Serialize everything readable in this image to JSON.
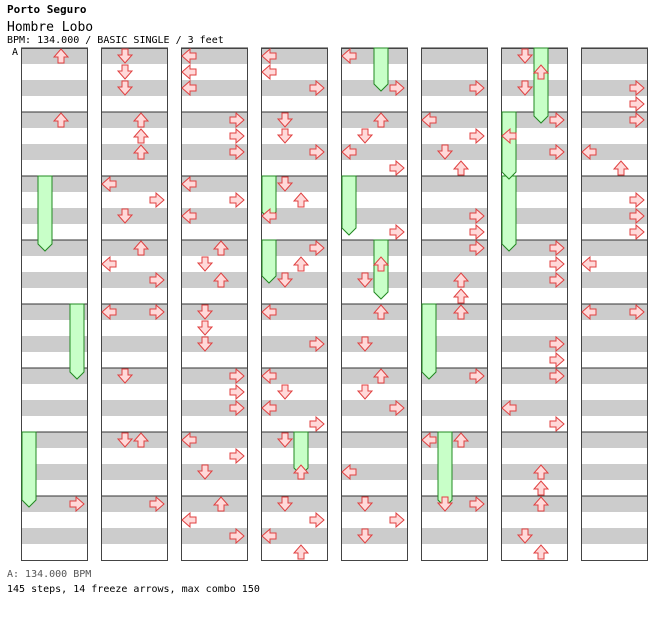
{
  "header": {
    "artist": "Porto Seguro",
    "title": "Hombre Lobo",
    "meta": "BPM: 134.000 / BASIC SINGLE / 3 feet"
  },
  "bpm_marker": "A",
  "footer": {
    "bpm_line": "A: 134.000 BPM",
    "stats": "145 steps, 14 freeze arrows, max combo 150"
  },
  "colors": {
    "stripe": "#cccccc",
    "arrow_fill": "#ffd9d9",
    "arrow_stroke": "#e04040",
    "freeze_fill": "#c8ffc8",
    "freeze_stroke": "#228822"
  },
  "chart_data": {
    "type": "step-chart",
    "columns": 8,
    "measures_per_column": 8,
    "lanes": [
      "left",
      "down",
      "up",
      "right"
    ],
    "freezes": [
      {
        "col": 0,
        "lane": "down",
        "start": 8,
        "end": 12.5
      },
      {
        "col": 0,
        "lane": "right",
        "start": 16,
        "end": 20.5
      },
      {
        "col": 0,
        "lane": "left",
        "start": 24,
        "end": 28.5
      },
      {
        "col": 3,
        "lane": "left",
        "start": 8,
        "end": 10.5
      },
      {
        "col": 3,
        "lane": "left",
        "start": 12,
        "end": 14.5
      },
      {
        "col": 3,
        "lane": "up",
        "start": 24,
        "end": 26.5
      },
      {
        "col": 4,
        "lane": "left",
        "start": 8,
        "end": 11.5
      },
      {
        "col": 4,
        "lane": "up",
        "start": 0,
        "end": 2.5
      },
      {
        "col": 4,
        "lane": "up",
        "start": 12,
        "end": 15.5
      },
      {
        "col": 5,
        "lane": "left",
        "start": 16,
        "end": 20.5
      },
      {
        "col": 5,
        "lane": "down",
        "start": 24,
        "end": 28.5
      },
      {
        "col": 6,
        "lane": "up",
        "start": 0,
        "end": 4.5
      },
      {
        "col": 6,
        "lane": "left",
        "start": 8,
        "end": 12.5
      },
      {
        "col": 6,
        "lane": "left",
        "start": 4,
        "end": 8
      }
    ],
    "arrows": [
      {
        "col": 0,
        "lane": "up",
        "row": 0.5
      },
      {
        "col": 0,
        "lane": "up",
        "row": 4.5
      },
      {
        "col": 0,
        "lane": "right",
        "row": 28.5
      },
      {
        "col": 1,
        "lane": "down",
        "row": 0.5
      },
      {
        "col": 1,
        "lane": "down",
        "row": 1.5
      },
      {
        "col": 1,
        "lane": "down",
        "row": 2.5
      },
      {
        "col": 1,
        "lane": "up",
        "row": 4.5
      },
      {
        "col": 1,
        "lane": "up",
        "row": 5.5
      },
      {
        "col": 1,
        "lane": "up",
        "row": 6.5
      },
      {
        "col": 1,
        "lane": "left",
        "row": 8.5
      },
      {
        "col": 1,
        "lane": "right",
        "row": 9.5
      },
      {
        "col": 1,
        "lane": "down",
        "row": 10.5
      },
      {
        "col": 1,
        "lane": "up",
        "row": 12.5
      },
      {
        "col": 1,
        "lane": "left",
        "row": 13.5
      },
      {
        "col": 1,
        "lane": "right",
        "row": 14.5
      },
      {
        "col": 1,
        "lane": "left",
        "row": 16.5
      },
      {
        "col": 1,
        "lane": "right",
        "row": 16.5
      },
      {
        "col": 1,
        "lane": "down",
        "row": 20.5
      },
      {
        "col": 1,
        "lane": "down",
        "row": 24.5
      },
      {
        "col": 1,
        "lane": "up",
        "row": 24.5
      },
      {
        "col": 1,
        "lane": "right",
        "row": 28.5
      },
      {
        "col": 2,
        "lane": "left",
        "row": 0.5
      },
      {
        "col": 2,
        "lane": "left",
        "row": 1.5
      },
      {
        "col": 2,
        "lane": "left",
        "row": 2.5
      },
      {
        "col": 2,
        "lane": "right",
        "row": 4.5
      },
      {
        "col": 2,
        "lane": "right",
        "row": 5.5
      },
      {
        "col": 2,
        "lane": "right",
        "row": 6.5
      },
      {
        "col": 2,
        "lane": "left",
        "row": 8.5
      },
      {
        "col": 2,
        "lane": "right",
        "row": 9.5
      },
      {
        "col": 2,
        "lane": "left",
        "row": 10.5
      },
      {
        "col": 2,
        "lane": "up",
        "row": 12.5
      },
      {
        "col": 2,
        "lane": "down",
        "row": 13.5
      },
      {
        "col": 2,
        "lane": "up",
        "row": 14.5
      },
      {
        "col": 2,
        "lane": "down",
        "row": 16.5
      },
      {
        "col": 2,
        "lane": "down",
        "row": 17.5
      },
      {
        "col": 2,
        "lane": "down",
        "row": 18.5
      },
      {
        "col": 2,
        "lane": "right",
        "row": 20.5
      },
      {
        "col": 2,
        "lane": "right",
        "row": 21.5
      },
      {
        "col": 2,
        "lane": "right",
        "row": 22.5
      },
      {
        "col": 2,
        "lane": "left",
        "row": 24.5
      },
      {
        "col": 2,
        "lane": "right",
        "row": 25.5
      },
      {
        "col": 2,
        "lane": "down",
        "row": 26.5
      },
      {
        "col": 2,
        "lane": "up",
        "row": 28.5
      },
      {
        "col": 2,
        "lane": "left",
        "row": 29.5
      },
      {
        "col": 2,
        "lane": "right",
        "row": 30.5
      },
      {
        "col": 3,
        "lane": "left",
        "row": 0.5
      },
      {
        "col": 3,
        "lane": "left",
        "row": 1.5
      },
      {
        "col": 3,
        "lane": "right",
        "row": 2.5
      },
      {
        "col": 3,
        "lane": "down",
        "row": 4.5
      },
      {
        "col": 3,
        "lane": "down",
        "row": 5.5
      },
      {
        "col": 3,
        "lane": "right",
        "row": 6.5
      },
      {
        "col": 3,
        "lane": "down",
        "row": 8.5
      },
      {
        "col": 3,
        "lane": "up",
        "row": 9.5
      },
      {
        "col": 3,
        "lane": "left",
        "row": 10.5
      },
      {
        "col": 3,
        "lane": "right",
        "row": 12.5
      },
      {
        "col": 3,
        "lane": "up",
        "row": 13.5
      },
      {
        "col": 3,
        "lane": "down",
        "row": 14.5
      },
      {
        "col": 3,
        "lane": "left",
        "row": 16.5
      },
      {
        "col": 3,
        "lane": "right",
        "row": 18.5
      },
      {
        "col": 3,
        "lane": "left",
        "row": 20.5
      },
      {
        "col": 3,
        "lane": "down",
        "row": 21.5
      },
      {
        "col": 3,
        "lane": "left",
        "row": 22.5
      },
      {
        "col": 3,
        "lane": "right",
        "row": 23.5
      },
      {
        "col": 3,
        "lane": "down",
        "row": 24.5
      },
      {
        "col": 3,
        "lane": "up",
        "row": 26.5
      },
      {
        "col": 3,
        "lane": "down",
        "row": 28.5
      },
      {
        "col": 3,
        "lane": "right",
        "row": 29.5
      },
      {
        "col": 3,
        "lane": "left",
        "row": 30.5
      },
      {
        "col": 3,
        "lane": "up",
        "row": 31.5
      },
      {
        "col": 4,
        "lane": "left",
        "row": 0.5
      },
      {
        "col": 4,
        "lane": "right",
        "row": 2.5
      },
      {
        "col": 4,
        "lane": "up",
        "row": 4.5
      },
      {
        "col": 4,
        "lane": "down",
        "row": 5.5
      },
      {
        "col": 4,
        "lane": "left",
        "row": 6.5
      },
      {
        "col": 4,
        "lane": "right",
        "row": 7.5
      },
      {
        "col": 4,
        "lane": "right",
        "row": 11.5
      },
      {
        "col": 4,
        "lane": "up",
        "row": 13.5
      },
      {
        "col": 4,
        "lane": "down",
        "row": 14.5
      },
      {
        "col": 4,
        "lane": "up",
        "row": 16.5
      },
      {
        "col": 4,
        "lane": "down",
        "row": 18.5
      },
      {
        "col": 4,
        "lane": "up",
        "row": 20.5
      },
      {
        "col": 4,
        "lane": "down",
        "row": 21.5
      },
      {
        "col": 4,
        "lane": "right",
        "row": 22.5
      },
      {
        "col": 4,
        "lane": "left",
        "row": 26.5
      },
      {
        "col": 4,
        "lane": "down",
        "row": 28.5
      },
      {
        "col": 4,
        "lane": "down",
        "row": 30.5
      },
      {
        "col": 4,
        "lane": "right",
        "row": 29.5
      },
      {
        "col": 5,
        "lane": "right",
        "row": 2.5
      },
      {
        "col": 5,
        "lane": "left",
        "row": 4.5
      },
      {
        "col": 5,
        "lane": "right",
        "row": 5.5
      },
      {
        "col": 5,
        "lane": "down",
        "row": 6.5
      },
      {
        "col": 5,
        "lane": "up",
        "row": 7.5
      },
      {
        "col": 5,
        "lane": "right",
        "row": 10.5
      },
      {
        "col": 5,
        "lane": "right",
        "row": 11.5
      },
      {
        "col": 5,
        "lane": "right",
        "row": 12.5
      },
      {
        "col": 5,
        "lane": "up",
        "row": 14.5
      },
      {
        "col": 5,
        "lane": "up",
        "row": 15.5
      },
      {
        "col": 5,
        "lane": "up",
        "row": 16.5
      },
      {
        "col": 5,
        "lane": "right",
        "row": 20.5
      },
      {
        "col": 5,
        "lane": "left",
        "row": 24.5
      },
      {
        "col": 5,
        "lane": "up",
        "row": 24.5
      },
      {
        "col": 5,
        "lane": "down",
        "row": 28.5
      },
      {
        "col": 5,
        "lane": "right",
        "row": 28.5
      },
      {
        "col": 6,
        "lane": "down",
        "row": 0.5
      },
      {
        "col": 6,
        "lane": "up",
        "row": 1.5
      },
      {
        "col": 6,
        "lane": "down",
        "row": 2.5
      },
      {
        "col": 6,
        "lane": "right",
        "row": 4.5
      },
      {
        "col": 6,
        "lane": "left",
        "row": 5.5
      },
      {
        "col": 6,
        "lane": "right",
        "row": 6.5
      },
      {
        "col": 6,
        "lane": "right",
        "row": 12.5
      },
      {
        "col": 6,
        "lane": "right",
        "row": 13.5
      },
      {
        "col": 6,
        "lane": "right",
        "row": 14.5
      },
      {
        "col": 6,
        "lane": "right",
        "row": 18.5
      },
      {
        "col": 6,
        "lane": "right",
        "row": 19.5
      },
      {
        "col": 6,
        "lane": "right",
        "row": 20.5
      },
      {
        "col": 6,
        "lane": "left",
        "row": 22.5
      },
      {
        "col": 6,
        "lane": "right",
        "row": 23.5
      },
      {
        "col": 6,
        "lane": "up",
        "row": 26.5
      },
      {
        "col": 6,
        "lane": "up",
        "row": 27.5
      },
      {
        "col": 6,
        "lane": "up",
        "row": 28.5
      },
      {
        "col": 6,
        "lane": "down",
        "row": 30.5
      },
      {
        "col": 6,
        "lane": "up",
        "row": 31.5
      },
      {
        "col": 7,
        "lane": "right",
        "row": 2.5
      },
      {
        "col": 7,
        "lane": "right",
        "row": 3.5
      },
      {
        "col": 7,
        "lane": "right",
        "row": 4.5
      },
      {
        "col": 7,
        "lane": "left",
        "row": 6.5
      },
      {
        "col": 7,
        "lane": "up",
        "row": 7.5
      },
      {
        "col": 7,
        "lane": "right",
        "row": 9.5
      },
      {
        "col": 7,
        "lane": "right",
        "row": 10.5
      },
      {
        "col": 7,
        "lane": "right",
        "row": 11.5
      },
      {
        "col": 7,
        "lane": "left",
        "row": 13.5
      },
      {
        "col": 7,
        "lane": "left",
        "row": 16.5
      },
      {
        "col": 7,
        "lane": "right",
        "row": 16.5
      }
    ]
  }
}
